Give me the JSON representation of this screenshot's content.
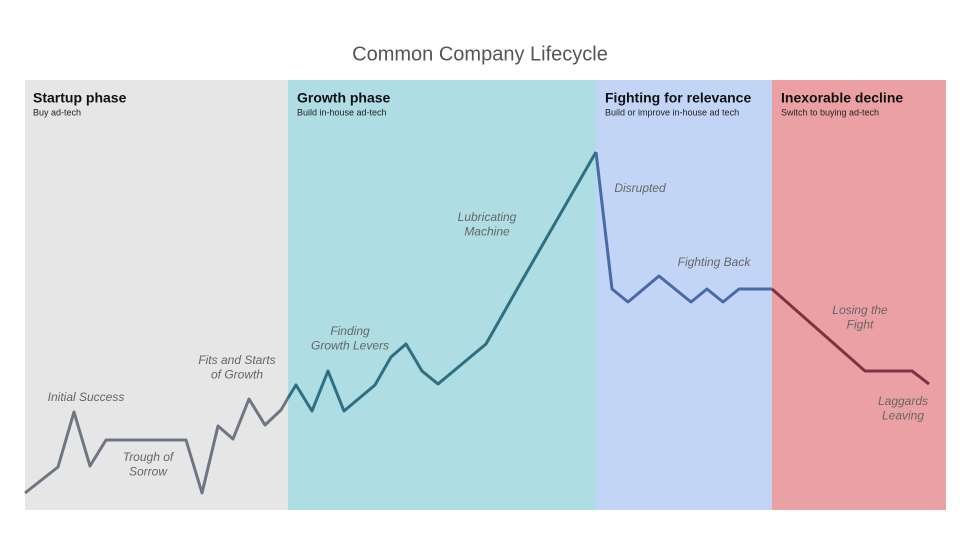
{
  "title": "Common Company Lifecycle",
  "phases": [
    {
      "title": "Startup phase",
      "subtitle": "Buy ad-tech"
    },
    {
      "title": "Growth phase",
      "subtitle": "Build in-house ad-tech"
    },
    {
      "title": "Fighting for relevance",
      "subtitle": "Build or improve in-house ad tech"
    },
    {
      "title": "Inexorable decline",
      "subtitle": "Switch to buying ad-tech"
    }
  ],
  "annotations": [
    {
      "lines": [
        "Initial Success"
      ]
    },
    {
      "lines": [
        "Trough of",
        "Sorrow"
      ]
    },
    {
      "lines": [
        "Fits and Starts",
        "of Growth"
      ]
    },
    {
      "lines": [
        "Finding",
        "Growth Levers"
      ]
    },
    {
      "lines": [
        "Lubricating",
        "Machine"
      ]
    },
    {
      "lines": [
        "Disrupted"
      ]
    },
    {
      "lines": [
        "Fighting Back"
      ]
    },
    {
      "lines": [
        "Losing the",
        "Fight"
      ]
    },
    {
      "lines": [
        "Laggards",
        "Leaving"
      ]
    }
  ]
}
